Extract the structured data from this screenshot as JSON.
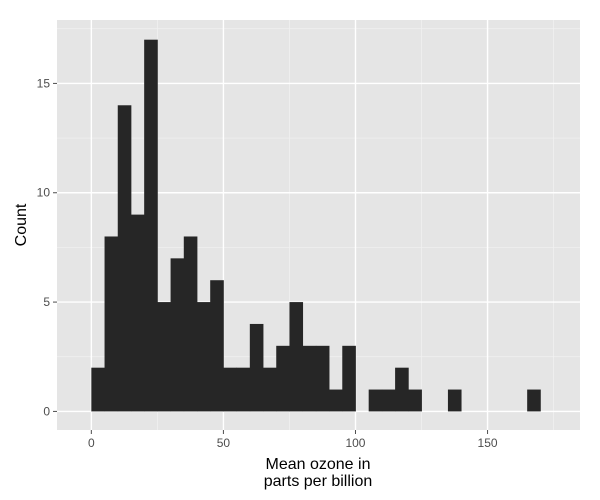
{
  "chart_data": {
    "type": "bar",
    "subtype": "histogram",
    "bin_width": 5,
    "bins": [
      {
        "start": 0,
        "count": 2
      },
      {
        "start": 5,
        "count": 8
      },
      {
        "start": 10,
        "count": 14
      },
      {
        "start": 15,
        "count": 9
      },
      {
        "start": 20,
        "count": 17
      },
      {
        "start": 25,
        "count": 5
      },
      {
        "start": 30,
        "count": 7
      },
      {
        "start": 35,
        "count": 8
      },
      {
        "start": 40,
        "count": 5
      },
      {
        "start": 45,
        "count": 6
      },
      {
        "start": 50,
        "count": 2
      },
      {
        "start": 55,
        "count": 2
      },
      {
        "start": 60,
        "count": 4
      },
      {
        "start": 65,
        "count": 2
      },
      {
        "start": 70,
        "count": 3
      },
      {
        "start": 75,
        "count": 5
      },
      {
        "start": 80,
        "count": 3
      },
      {
        "start": 85,
        "count": 3
      },
      {
        "start": 90,
        "count": 1
      },
      {
        "start": 95,
        "count": 3
      },
      {
        "start": 100,
        "count": 0
      },
      {
        "start": 105,
        "count": 1
      },
      {
        "start": 110,
        "count": 1
      },
      {
        "start": 115,
        "count": 2
      },
      {
        "start": 120,
        "count": 1
      },
      {
        "start": 125,
        "count": 0
      },
      {
        "start": 130,
        "count": 0
      },
      {
        "start": 135,
        "count": 1
      },
      {
        "start": 140,
        "count": 0
      },
      {
        "start": 145,
        "count": 0
      },
      {
        "start": 150,
        "count": 0
      },
      {
        "start": 155,
        "count": 0
      },
      {
        "start": 160,
        "count": 0
      },
      {
        "start": 165,
        "count": 1
      }
    ],
    "xlabel": [
      "Mean ozone in",
      "parts per billion"
    ],
    "ylabel": "Count",
    "xlim": [
      -13,
      185
    ],
    "ylim": [
      -0.85,
      17.9
    ],
    "xticks": [
      0,
      50,
      100,
      150
    ],
    "xtick_labels": [
      "0",
      "50",
      "100",
      "150"
    ],
    "yticks": [
      0,
      5,
      10,
      15
    ],
    "ytick_labels": [
      "0",
      "5",
      "10",
      "15"
    ],
    "grid": true,
    "colors": {
      "panel": "#e5e5e5",
      "grid_major": "#ffffff",
      "grid_minor": "#f2f2f2",
      "bar": "#262626",
      "tick": "#4d4d4d"
    }
  }
}
